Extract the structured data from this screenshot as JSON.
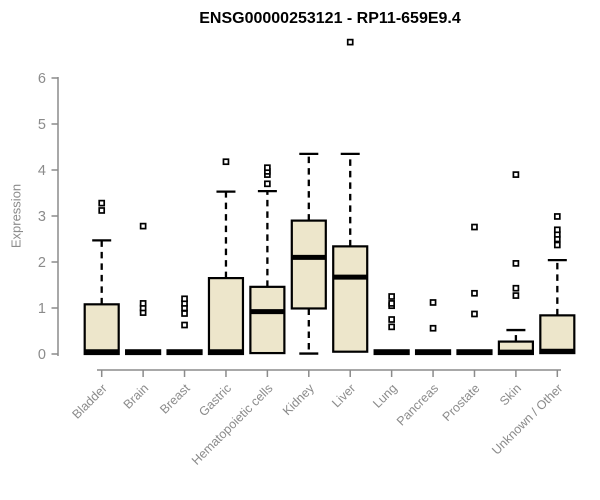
{
  "title": "ENSG00000253121 - RP11-659E9.4",
  "y_axis_title": "Expression",
  "chart_data": {
    "type": "boxplot",
    "title": "ENSG00000253121 - RP11-659E9.4",
    "ylabel": "Expression",
    "ylim": [
      0,
      6.9
    ],
    "yticks": [
      0,
      1,
      2,
      3,
      4,
      5,
      6
    ],
    "grid": false,
    "legend": "none",
    "categories": [
      "Bladder",
      "Brain",
      "Breast",
      "Gastric",
      "Hematopoietic cells",
      "Kidney",
      "Liver",
      "Lung",
      "Pancreas",
      "Prostate",
      "Skin",
      "Unknown / Other"
    ],
    "series": [
      {
        "name": "Bladder",
        "q1": 0.0,
        "median": 0.05,
        "q3": 1.08,
        "whisker_low": 0.0,
        "whisker_high": 2.47,
        "outliers": [
          3.12,
          3.28
        ]
      },
      {
        "name": "Brain",
        "q1": 0.0,
        "median": 0.04,
        "q3": 0.08,
        "whisker_low": 0.0,
        "whisker_high": 0.08,
        "outliers": [
          0.9,
          1.0,
          1.1,
          2.78
        ]
      },
      {
        "name": "Breast",
        "q1": 0.0,
        "median": 0.04,
        "q3": 0.08,
        "whisker_low": 0.0,
        "whisker_high": 0.08,
        "outliers": [
          0.63,
          0.88,
          1.0,
          1.1,
          1.2
        ]
      },
      {
        "name": "Gastric",
        "q1": 0.0,
        "median": 0.05,
        "q3": 1.65,
        "whisker_low": 0.0,
        "whisker_high": 3.53,
        "outliers": [
          4.18
        ]
      },
      {
        "name": "Hematopoietic cells",
        "q1": 0.02,
        "median": 0.92,
        "q3": 1.46,
        "whisker_low": 0.02,
        "whisker_high": 3.54,
        "outliers": [
          3.7,
          3.9,
          3.97,
          4.05
        ]
      },
      {
        "name": "Kidney",
        "q1": 0.99,
        "median": 2.1,
        "q3": 2.9,
        "whisker_low": 0.01,
        "whisker_high": 4.35,
        "outliers": []
      },
      {
        "name": "Liver",
        "q1": 0.05,
        "median": 1.67,
        "q3": 2.34,
        "whisker_low": 0.05,
        "whisker_high": 4.35,
        "outliers": [
          6.78
        ]
      },
      {
        "name": "Lung",
        "q1": 0.0,
        "median": 0.04,
        "q3": 0.08,
        "whisker_low": 0.0,
        "whisker_high": 0.08,
        "outliers": [
          0.59,
          0.75,
          1.05,
          1.1,
          1.25
        ]
      },
      {
        "name": "Pancreas",
        "q1": 0.0,
        "median": 0.04,
        "q3": 0.08,
        "whisker_low": 0.0,
        "whisker_high": 0.08,
        "outliers": [
          0.56,
          1.12
        ]
      },
      {
        "name": "Prostate",
        "q1": 0.0,
        "median": 0.04,
        "q3": 0.08,
        "whisker_low": 0.0,
        "whisker_high": 0.08,
        "outliers": [
          0.87,
          1.32,
          2.76
        ]
      },
      {
        "name": "Skin",
        "q1": 0.0,
        "median": 0.04,
        "q3": 0.27,
        "whisker_low": 0.0,
        "whisker_high": 0.52,
        "outliers": [
          1.27,
          1.43,
          1.97,
          3.9
        ]
      },
      {
        "name": "Unknown / Other",
        "q1": 0.02,
        "median": 0.06,
        "q3": 0.84,
        "whisker_low": 0.02,
        "whisker_high": 2.04,
        "outliers": [
          2.37,
          2.5,
          2.6,
          2.7,
          2.99
        ]
      }
    ],
    "colors": {
      "box_fill": "#EDE6CB",
      "box_stroke": "#000000",
      "median": "#000000",
      "whisker": "#000000",
      "outlier_stroke": "#000000",
      "outlier_fill": "#FFFFFF",
      "axis": "#8B8B8B",
      "tick_text": "#8B8B8B",
      "title_text": "#000000",
      "background": "#FFFFFF"
    }
  }
}
